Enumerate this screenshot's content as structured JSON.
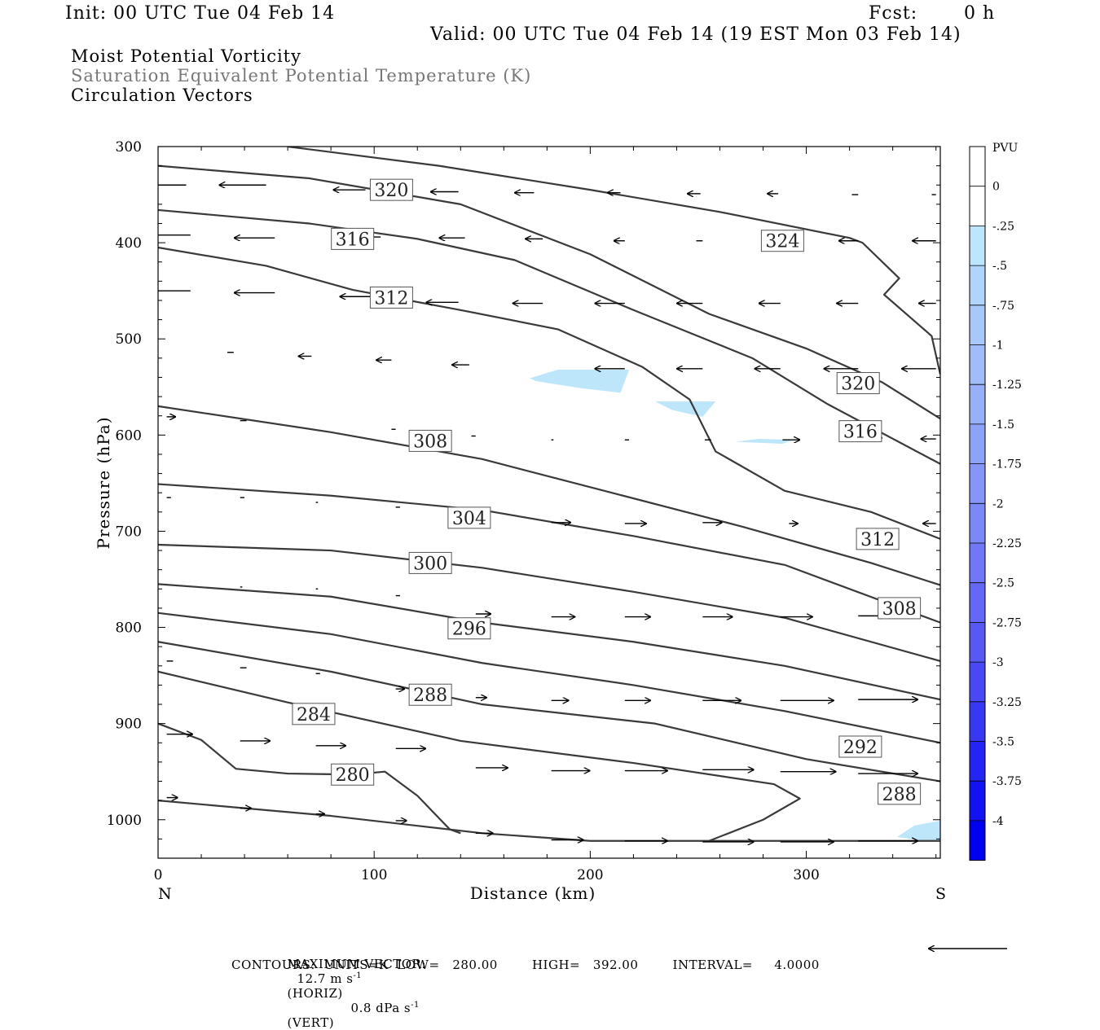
{
  "header": {
    "init": "Init: 00 UTC Tue 04 Feb 14",
    "fcst_label": "Fcst:",
    "fcst_value": "0 h",
    "valid": "Valid: 00 UTC Tue 04 Feb 14 (19 EST Mon 03 Feb 14)"
  },
  "titles": {
    "line1": "Moist Potential Vorticity",
    "line2": "Saturation Equivalent Potential Temperature (K)",
    "line3": "Circulation Vectors"
  },
  "footer": {
    "max_vector_label": "MAXIMUM VECTOR:",
    "horiz": "12.7 m s",
    "horiz_sup": "-1",
    "horiz_tag": "(HORIZ)",
    "vert": "0.8 dPa s",
    "vert_sup": "-1",
    "vert_tag": "(VERT)",
    "contours": "CONTOURS:  UNITS=K  LOW=   280.00        HIGH=   392.00        INTERVAL=     4.0000"
  },
  "colors": {
    "contour": "#3a3a3a",
    "pv_fill": "#bde6fb",
    "frame": "#000000"
  },
  "chart_data": {
    "type": "cross-section",
    "xlabel": "Distance (km)",
    "ylabel": "Pressure (hPa)",
    "xlim": [
      0,
      362
    ],
    "ylim": [
      300,
      1040
    ],
    "y_inverted": true,
    "x_ticks": [
      0,
      100,
      200,
      300
    ],
    "y_ticks": [
      300,
      400,
      500,
      600,
      700,
      800,
      900,
      1000
    ],
    "x_end_labels": {
      "left": "N",
      "right": "S"
    },
    "colorbar": {
      "unit": "PVU",
      "levels": [
        "0",
        "-.25",
        "-.5",
        "-.75",
        "-1",
        "-1.25",
        "-1.5",
        "-1.75",
        "-2",
        "-2.25",
        "-2.5",
        "-2.75",
        "-3",
        "-3.25",
        "-3.5",
        "-3.75",
        "-4"
      ],
      "colors": [
        "#ffffff",
        "#ffffff",
        "#bde6fb",
        "#b0d4fa",
        "#a9c8fa",
        "#a1bdf9",
        "#97b0f9",
        "#8ea3f8",
        "#8596f8",
        "#7b88f7",
        "#7078f7",
        "#6468f6",
        "#5858f5",
        "#4848f5",
        "#3838f4",
        "#2424f3",
        "#1212f2",
        "#0000f0"
      ]
    },
    "contours": [
      {
        "label": "324",
        "points": [
          [
            60,
            300
          ],
          [
            130,
            320
          ],
          [
            200,
            345
          ],
          [
            260,
            368
          ],
          [
            320,
            395
          ],
          [
            326,
            400
          ],
          [
            343,
            437
          ],
          [
            336,
            454
          ],
          [
            358,
            497
          ],
          [
            362,
            537
          ]
        ],
        "label_at": [
          289,
          398
        ]
      },
      {
        "label": "320",
        "points": [
          [
            0,
            320
          ],
          [
            70,
            333
          ],
          [
            140,
            360
          ],
          [
            200,
            412
          ],
          [
            255,
            474
          ],
          [
            300,
            510
          ],
          [
            335,
            545
          ],
          [
            362,
            583
          ]
        ],
        "label_at": [
          108,
          345
        ],
        "label2": "320",
        "label2_at": [
          324,
          546
        ]
      },
      {
        "label": "316",
        "points": [
          [
            0,
            366
          ],
          [
            70,
            380
          ],
          [
            120,
            396
          ],
          [
            165,
            418
          ],
          [
            220,
            470
          ],
          [
            275,
            520
          ],
          [
            310,
            568
          ],
          [
            362,
            630
          ]
        ],
        "label_at": [
          90,
          396
        ],
        "label2": "316",
        "label2_at": [
          325,
          596
        ]
      },
      {
        "label": "312",
        "points": [
          [
            0,
            405
          ],
          [
            50,
            424
          ],
          [
            90,
            449
          ],
          [
            140,
            470
          ],
          [
            185,
            490
          ],
          [
            224,
            529
          ],
          [
            246,
            563
          ],
          [
            258,
            617
          ],
          [
            290,
            658
          ],
          [
            330,
            680
          ],
          [
            362,
            708
          ]
        ],
        "label_at": [
          108,
          457
        ],
        "label2": "312",
        "label2_at": [
          333,
          708
        ]
      },
      {
        "label": "308",
        "points": [
          [
            0,
            570
          ],
          [
            80,
            597
          ],
          [
            150,
            625
          ],
          [
            210,
            660
          ],
          [
            270,
            695
          ],
          [
            330,
            733
          ],
          [
            362,
            756
          ]
        ],
        "label_at": [
          126,
          606
        ],
        "label2": "308",
        "label2_at": [
          343,
          780
        ]
      },
      {
        "label": "304",
        "points": [
          [
            0,
            651
          ],
          [
            80,
            663
          ],
          [
            150,
            678
          ],
          [
            220,
            705
          ],
          [
            290,
            735
          ],
          [
            362,
            795
          ]
        ],
        "label_at": [
          144,
          686
        ]
      },
      {
        "label": "300",
        "points": [
          [
            0,
            714
          ],
          [
            80,
            720
          ],
          [
            150,
            738
          ],
          [
            220,
            763
          ],
          [
            290,
            790
          ],
          [
            362,
            835
          ]
        ],
        "label_at": [
          126,
          733
        ]
      },
      {
        "label": "296",
        "points": [
          [
            0,
            755
          ],
          [
            80,
            768
          ],
          [
            150,
            795
          ],
          [
            220,
            815
          ],
          [
            290,
            840
          ],
          [
            362,
            875
          ]
        ],
        "label_at": [
          144,
          801
        ]
      },
      {
        "label": "292",
        "points": [
          [
            0,
            785
          ],
          [
            80,
            807
          ],
          [
            150,
            837
          ],
          [
            220,
            860
          ],
          [
            290,
            887
          ],
          [
            362,
            920
          ]
        ],
        "label_at": [
          325,
          924
        ]
      },
      {
        "label": "288",
        "points": [
          [
            0,
            815
          ],
          [
            80,
            846
          ],
          [
            150,
            880
          ],
          [
            230,
            900
          ],
          [
            300,
            937
          ],
          [
            362,
            960
          ]
        ],
        "label_at": [
          126,
          870
        ],
        "label2": "288",
        "label2_at": [
          343,
          973
        ]
      },
      {
        "label": "284",
        "points": [
          [
            0,
            846
          ],
          [
            60,
            878
          ],
          [
            140,
            918
          ],
          [
            220,
            941
          ],
          [
            285,
            963
          ],
          [
            297,
            978
          ],
          [
            280,
            1000
          ],
          [
            255,
            1022
          ]
        ],
        "label_at": [
          72,
          890
        ]
      },
      {
        "label": "280",
        "points": [
          [
            0,
            900
          ],
          [
            20,
            917
          ],
          [
            36,
            947
          ],
          [
            60,
            952
          ],
          [
            90,
            953
          ],
          [
            105,
            950
          ],
          [
            120,
            975
          ],
          [
            135,
            1010
          ],
          [
            140,
            1014
          ]
        ],
        "label_at": [
          90,
          953
        ]
      },
      {
        "label": "",
        "points": [
          [
            0,
            980
          ],
          [
            80,
            996
          ],
          [
            150,
            1014
          ],
          [
            200,
            1022
          ],
          [
            280,
            1022
          ],
          [
            362,
            1022
          ]
        ]
      }
    ],
    "pv_regions": [
      {
        "value": "-.25 to -.5",
        "points": [
          [
            172,
            541
          ],
          [
            185,
            532
          ],
          [
            218,
            532
          ],
          [
            214,
            556
          ],
          [
            195,
            551
          ],
          [
            175,
            544
          ]
        ]
      },
      {
        "value": "-.25 to -.5",
        "points": [
          [
            230,
            565
          ],
          [
            258,
            565
          ],
          [
            252,
            581
          ],
          [
            238,
            574
          ]
        ]
      },
      {
        "value": "-.25 to -.5",
        "points": [
          [
            267,
            607
          ],
          [
            278,
            604
          ],
          [
            294,
            605
          ],
          [
            289,
            609
          ]
        ]
      },
      {
        "value": "-.25 to -.5",
        "points": [
          [
            342,
            1018
          ],
          [
            350,
            1006
          ],
          [
            362,
            1001
          ],
          [
            362,
            1022
          ],
          [
            355,
            1022
          ]
        ]
      }
    ],
    "vectors": [
      [
        13,
        340,
        -25
      ],
      [
        50,
        340,
        -22
      ],
      [
        96,
        345,
        -15
      ],
      [
        139,
        347,
        -13
      ],
      [
        174,
        348,
        -9
      ],
      [
        214,
        348,
        -6
      ],
      [
        251,
        349,
        -6
      ],
      [
        287,
        349,
        -5
      ],
      [
        324,
        350,
        -3
      ],
      [
        360,
        350,
        -2
      ],
      [
        15,
        392,
        -21
      ],
      [
        54,
        395,
        -19
      ],
      [
        103,
        394,
        -15
      ],
      [
        142,
        395,
        -12
      ],
      [
        178,
        396,
        -8
      ],
      [
        216,
        398,
        -5
      ],
      [
        252,
        398,
        -3
      ],
      [
        288,
        398,
        -4
      ],
      [
        324,
        398,
        -9
      ],
      [
        360,
        398,
        -11
      ],
      [
        15,
        450,
        -22
      ],
      [
        54,
        452,
        -19
      ],
      [
        99,
        456,
        -15
      ],
      [
        139,
        462,
        -15
      ],
      [
        178,
        463,
        -14
      ],
      [
        216,
        463,
        -14
      ],
      [
        252,
        463,
        -12
      ],
      [
        288,
        463,
        -10
      ],
      [
        324,
        463,
        -10
      ],
      [
        360,
        463,
        -8
      ],
      [
        35,
        514,
        -3
      ],
      [
        71,
        518,
        -6
      ],
      [
        108,
        522,
        -7
      ],
      [
        144,
        527,
        -8
      ],
      [
        216,
        531,
        -14
      ],
      [
        252,
        531,
        -12
      ],
      [
        288,
        531,
        -12
      ],
      [
        324,
        531,
        -16
      ],
      [
        360,
        531,
        -16
      ],
      [
        4,
        581,
        4
      ],
      [
        38,
        585,
        3
      ],
      [
        108,
        594,
        2
      ],
      [
        145,
        601,
        2
      ],
      [
        182,
        605,
        1
      ],
      [
        216,
        605,
        2
      ],
      [
        253,
        605,
        3
      ],
      [
        289,
        605,
        8
      ],
      [
        324,
        603,
        11
      ],
      [
        360,
        604,
        -7
      ],
      [
        4,
        665,
        2
      ],
      [
        38,
        665,
        2
      ],
      [
        73,
        670,
        1
      ],
      [
        110,
        675,
        2
      ],
      [
        182,
        691,
        9
      ],
      [
        216,
        692,
        10
      ],
      [
        252,
        691,
        9
      ],
      [
        292,
        692,
        4
      ],
      [
        360,
        692,
        -6
      ],
      [
        38,
        758,
        1
      ],
      [
        73,
        760,
        1
      ],
      [
        110,
        767,
        2
      ],
      [
        147,
        786,
        7
      ],
      [
        182,
        789,
        11
      ],
      [
        216,
        789,
        12
      ],
      [
        252,
        789,
        14
      ],
      [
        288,
        789,
        15
      ],
      [
        324,
        788,
        13
      ],
      [
        4,
        835,
        3
      ],
      [
        38,
        842,
        3
      ],
      [
        73,
        848,
        2
      ],
      [
        110,
        864,
        4
      ],
      [
        147,
        873,
        5
      ],
      [
        182,
        876,
        8
      ],
      [
        216,
        876,
        12
      ],
      [
        252,
        876,
        18
      ],
      [
        288,
        876,
        25
      ],
      [
        324,
        875,
        28
      ],
      [
        4,
        911,
        12
      ],
      [
        38,
        918,
        14
      ],
      [
        73,
        923,
        14
      ],
      [
        110,
        926,
        14
      ],
      [
        147,
        946,
        15
      ],
      [
        182,
        949,
        18
      ],
      [
        216,
        949,
        20
      ],
      [
        252,
        948,
        24
      ],
      [
        288,
        950,
        26
      ],
      [
        324,
        952,
        28
      ],
      [
        4,
        977,
        5
      ],
      [
        38,
        988,
        5
      ],
      [
        73,
        994,
        4
      ],
      [
        110,
        1001,
        5
      ],
      [
        147,
        1014,
        8
      ],
      [
        182,
        1021,
        15
      ],
      [
        216,
        1022,
        20
      ],
      [
        252,
        1023,
        24
      ],
      [
        288,
        1023,
        25
      ],
      [
        324,
        1022,
        28
      ]
    ]
  }
}
